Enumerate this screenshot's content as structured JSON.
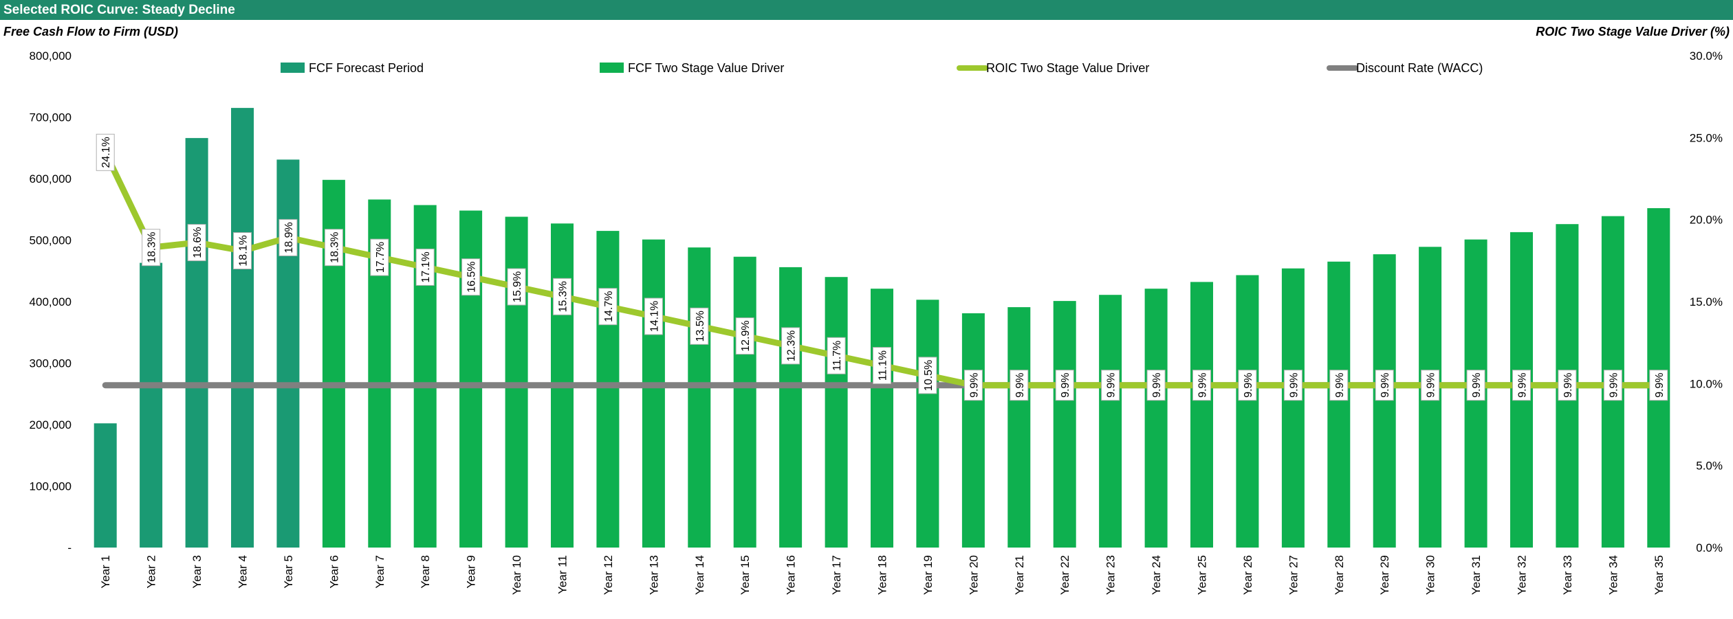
{
  "header": {
    "title": "Selected ROIC Curve: Steady Decline"
  },
  "chart_data": {
    "type": "bar",
    "title": "Selected ROIC Curve: Steady Decline",
    "ylabel": "Free Cash Flow to Firm (USD)",
    "y2label": "ROIC Two Stage Value Driver (%)",
    "ylim": [
      0,
      800000
    ],
    "y2lim": [
      0,
      30
    ],
    "y_ticks": [
      "-",
      "100,000",
      "200,000",
      "300,000",
      "400,000",
      "500,000",
      "600,000",
      "700,000",
      "800,000"
    ],
    "y2_ticks": [
      "0.0%",
      "5.0%",
      "10.0%",
      "15.0%",
      "20.0%",
      "25.0%",
      "30.0%"
    ],
    "categories": [
      "Year 1",
      "Year 2",
      "Year 3",
      "Year 4",
      "Year 5",
      "Year 6",
      "Year 7",
      "Year 8",
      "Year 9",
      "Year 10",
      "Year 11",
      "Year 12",
      "Year 13",
      "Year 14",
      "Year 15",
      "Year 16",
      "Year 17",
      "Year 18",
      "Year 19",
      "Year 20",
      "Year 21",
      "Year 22",
      "Year 23",
      "Year 24",
      "Year 25",
      "Year 26",
      "Year 27",
      "Year 28",
      "Year 29",
      "Year 30",
      "Year 31",
      "Year 32",
      "Year 33",
      "Year 34",
      "Year 35"
    ],
    "legend_position": "top",
    "series": [
      {
        "name": "FCF Forecast Period",
        "type": "bar",
        "axis": "left",
        "color": "#1a9a73",
        "values": [
          202000,
          463000,
          666000,
          715000,
          631000,
          null,
          null,
          null,
          null,
          null,
          null,
          null,
          null,
          null,
          null,
          null,
          null,
          null,
          null,
          null,
          null,
          null,
          null,
          null,
          null,
          null,
          null,
          null,
          null,
          null,
          null,
          null,
          null,
          null,
          null
        ]
      },
      {
        "name": "FCF Two Stage Value Driver",
        "type": "bar",
        "axis": "left",
        "color": "#0eb04f",
        "values": [
          null,
          null,
          null,
          null,
          null,
          598000,
          566000,
          557000,
          548000,
          538000,
          527000,
          515000,
          501000,
          488000,
          473000,
          456000,
          440000,
          421000,
          403000,
          381000,
          391000,
          401000,
          411000,
          421000,
          432000,
          443000,
          454000,
          465000,
          477000,
          489000,
          501000,
          513000,
          526000,
          539000,
          552000
        ]
      },
      {
        "name": "ROIC Two Stage Value Driver",
        "type": "line",
        "axis": "right",
        "color": "#9dc82d",
        "values": [
          24.1,
          18.3,
          18.6,
          18.1,
          18.9,
          18.3,
          17.7,
          17.1,
          16.5,
          15.9,
          15.3,
          14.7,
          14.1,
          13.5,
          12.9,
          12.3,
          11.7,
          11.1,
          10.5,
          9.9,
          9.9,
          9.9,
          9.9,
          9.9,
          9.9,
          9.9,
          9.9,
          9.9,
          9.9,
          9.9,
          9.9,
          9.9,
          9.9,
          9.9,
          9.9
        ],
        "labels": [
          "24.1%",
          "18.3%",
          "18.6%",
          "18.1%",
          "18.9%",
          "18.3%",
          "17.7%",
          "17.1%",
          "16.5%",
          "15.9%",
          "15.3%",
          "14.7%",
          "14.1%",
          "13.5%",
          "12.9%",
          "12.3%",
          "11.7%",
          "11.1%",
          "10.5%",
          "9.9%",
          "9.9%",
          "9.9%",
          "9.9%",
          "9.9%",
          "9.9%",
          "9.9%",
          "9.9%",
          "9.9%",
          "9.9%",
          "9.9%",
          "9.9%",
          "9.9%",
          "9.9%",
          "9.9%",
          "9.9%"
        ]
      },
      {
        "name": "Discount Rate (WACC)",
        "type": "line",
        "axis": "right",
        "color": "#808080",
        "values": [
          9.9,
          9.9,
          9.9,
          9.9,
          9.9,
          9.9,
          9.9,
          9.9,
          9.9,
          9.9,
          9.9,
          9.9,
          9.9,
          9.9,
          9.9,
          9.9,
          9.9,
          9.9,
          9.9,
          9.9,
          9.9,
          9.9,
          9.9,
          9.9,
          9.9,
          9.9,
          9.9,
          9.9,
          9.9,
          9.9,
          9.9,
          9.9,
          9.9,
          9.9,
          9.9
        ]
      }
    ]
  }
}
